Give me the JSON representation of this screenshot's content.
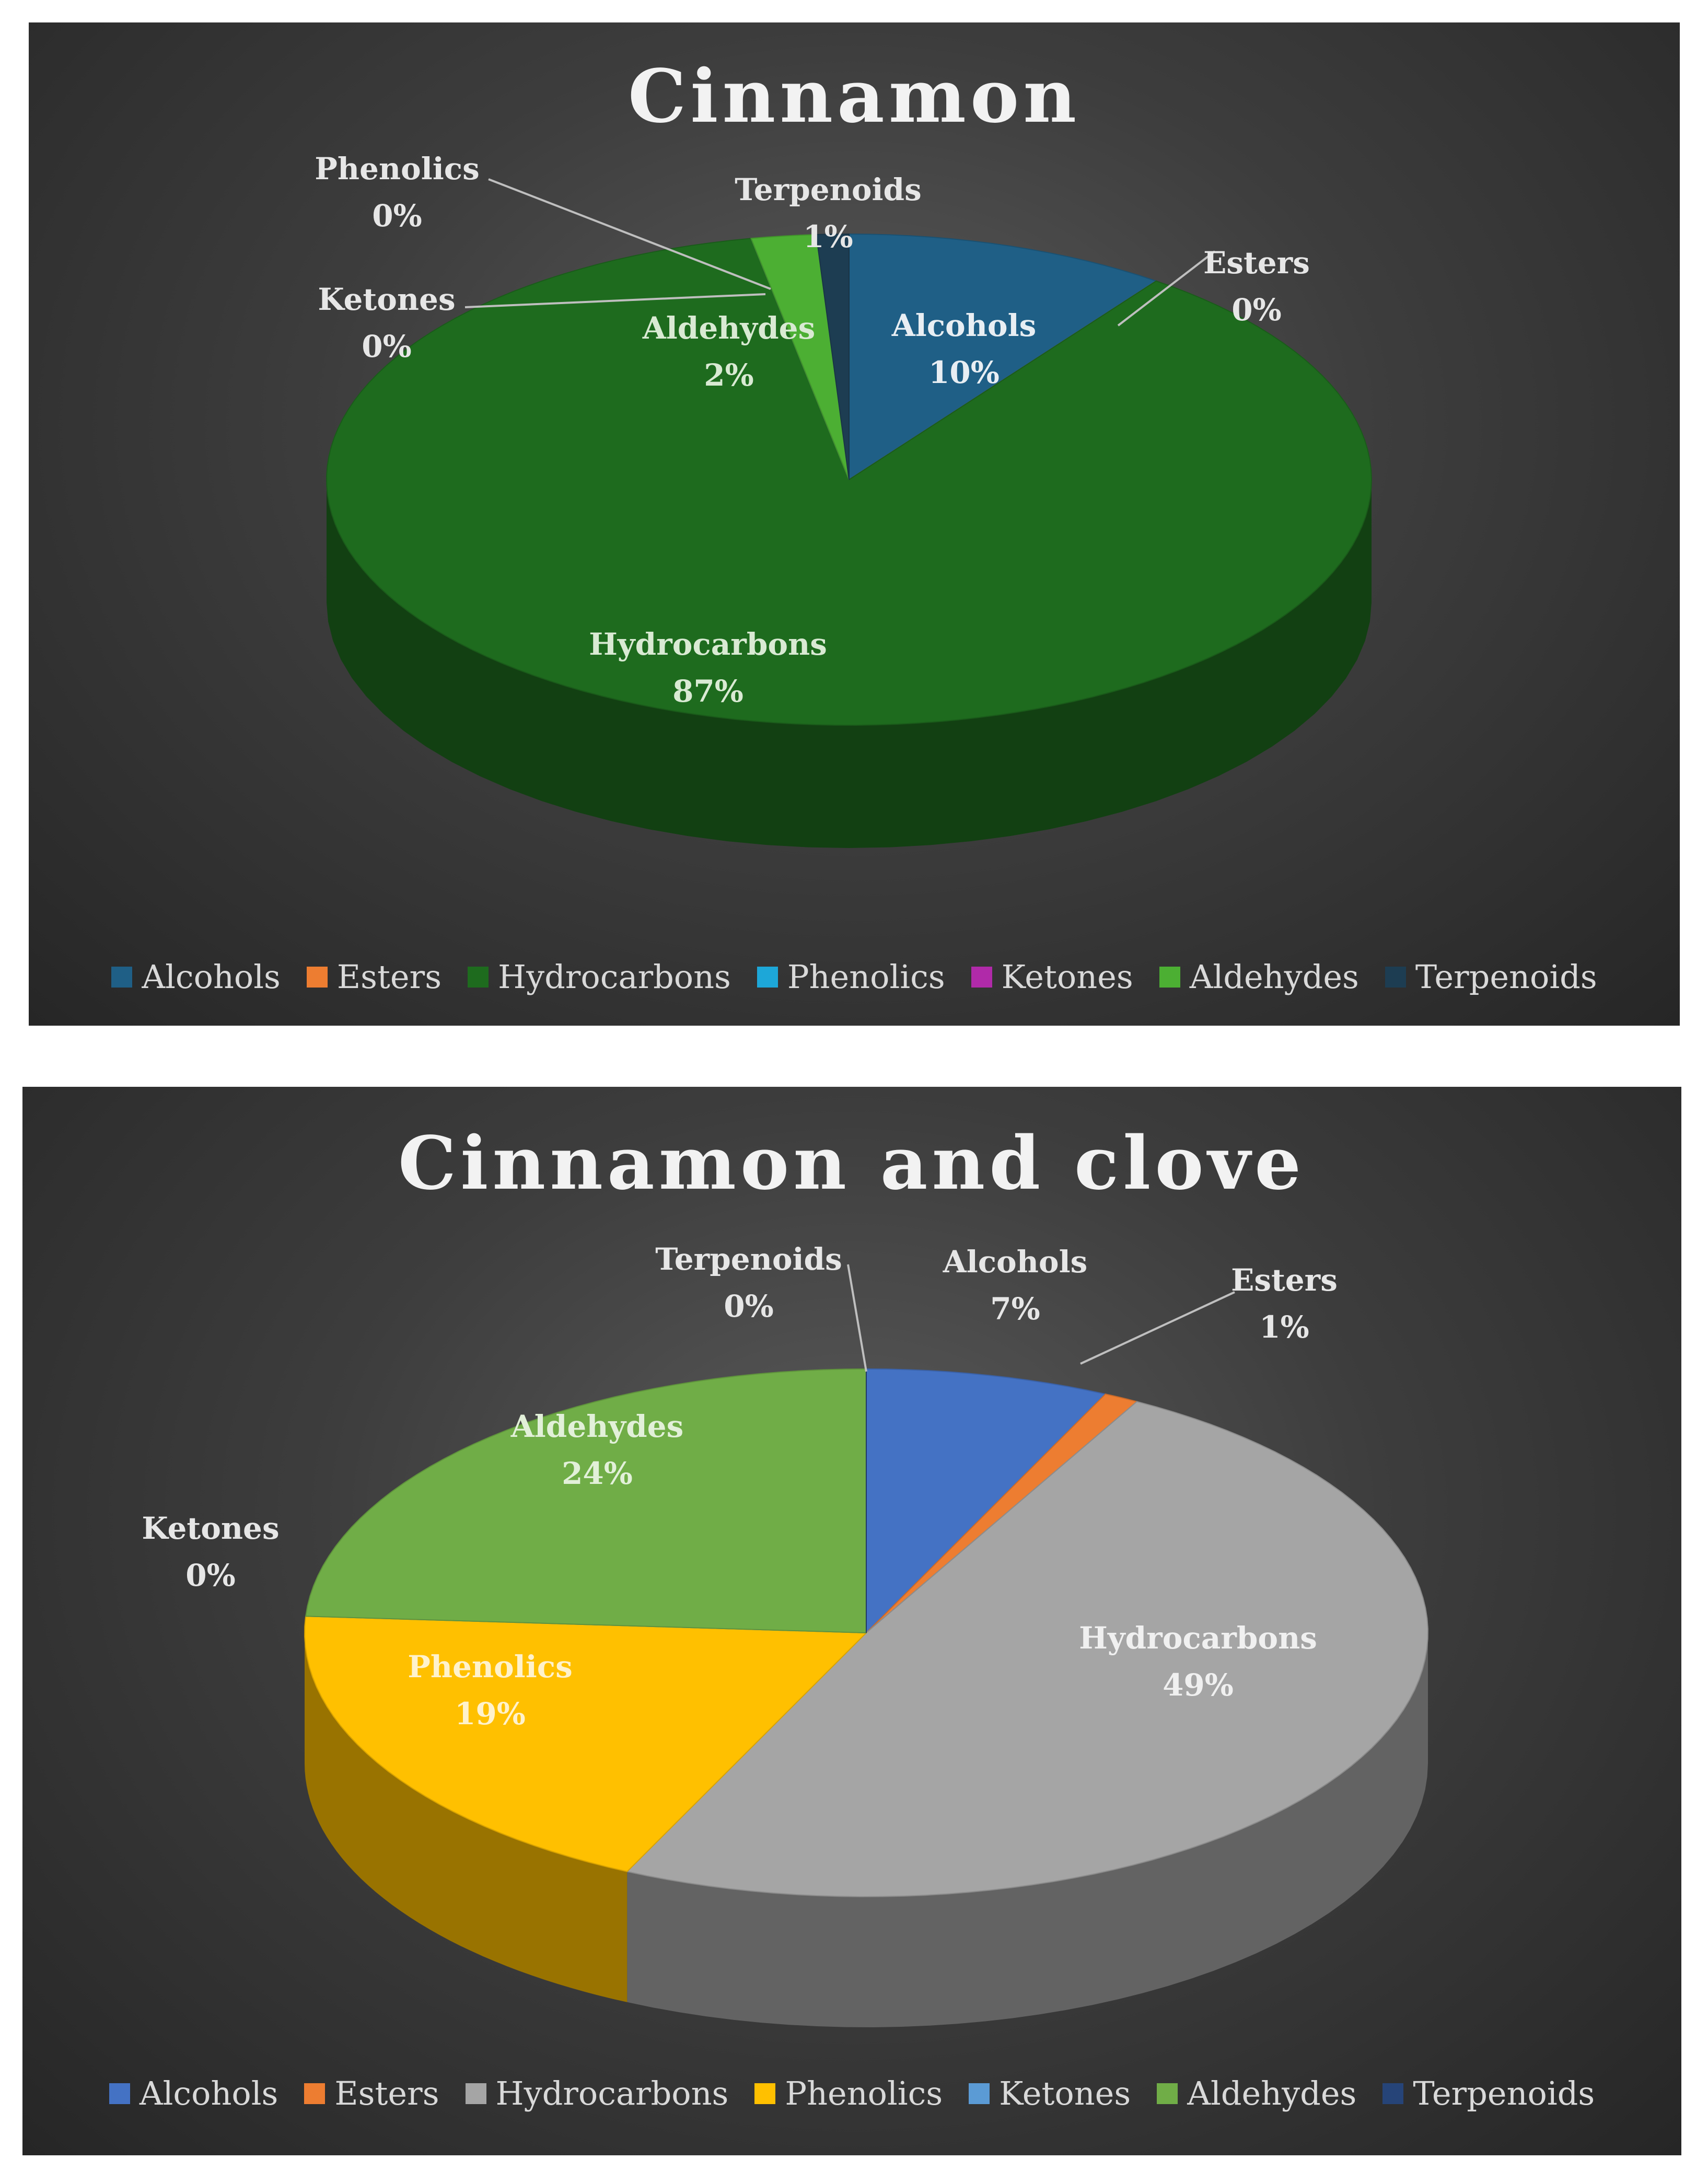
{
  "chart_data": [
    {
      "type": "pie",
      "title": "Cinnamon",
      "categories": [
        "Alcohols",
        "Esters",
        "Hydrocarbons",
        "Phenolics",
        "Ketones",
        "Aldehydes",
        "Terpenoids"
      ],
      "values": [
        10,
        0,
        87,
        0,
        0,
        2,
        1
      ],
      "value_labels": [
        "10%",
        "0%",
        "87%",
        "0%",
        "0%",
        "2%",
        "1%"
      ],
      "colors": [
        "#1f5f86",
        "#ed7d31",
        "#1e6b1e",
        "#1da7d8",
        "#b02aa9",
        "#4caf33",
        "#1d3d52"
      ],
      "legend_position": "bottom",
      "style": "3d"
    },
    {
      "type": "pie",
      "title": "Cinnamon and clove",
      "categories": [
        "Alcohols",
        "Esters",
        "Hydrocarbons",
        "Phenolics",
        "Ketones",
        "Aldehydes",
        "Terpenoids"
      ],
      "values": [
        7,
        1,
        49,
        19,
        0,
        24,
        0
      ],
      "value_labels": [
        "7%",
        "1%",
        "49%",
        "19%",
        "0%",
        "24%",
        "0%"
      ],
      "colors": [
        "#4472c4",
        "#ed7d31",
        "#a5a5a5",
        "#ffc000",
        "#5b9bd5",
        "#70ad47",
        "#264478"
      ],
      "legend_position": "bottom",
      "style": "3d"
    }
  ]
}
